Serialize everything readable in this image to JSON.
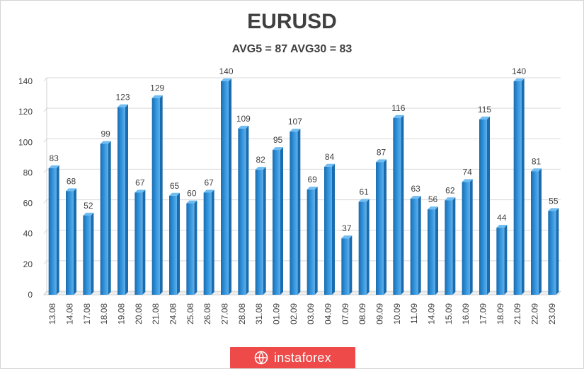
{
  "chart_data": {
    "type": "bar",
    "title": "EURUSD",
    "subtitle": "AVG5 = 87 AVG30 = 83",
    "categories": [
      "13.08",
      "14.08",
      "17.08",
      "18.08",
      "19.08",
      "20.08",
      "21.08",
      "24.08",
      "25.08",
      "26.08",
      "27.08",
      "28.08",
      "31.08",
      "01.09",
      "02.09",
      "03.09",
      "04.09",
      "07.09",
      "08.09",
      "09.09",
      "10.09",
      "11.09",
      "14.09",
      "15.09",
      "16.09",
      "17.09",
      "18.09",
      "21.09",
      "22.09",
      "23.09"
    ],
    "values": [
      83,
      68,
      52,
      99,
      123,
      67,
      129,
      65,
      60,
      67,
      140,
      109,
      82,
      95,
      107,
      69,
      84,
      37,
      61,
      87,
      116,
      63,
      56,
      62,
      74,
      115,
      44,
      140,
      81,
      55
    ],
    "ylim": [
      0,
      140
    ],
    "yticks": [
      0,
      20,
      40,
      60,
      80,
      100,
      120,
      140
    ],
    "grid": true,
    "legend": "none",
    "colors": {
      "bar": "#2e8fd8",
      "bar_dark": "#1a6cae",
      "grid": "#d9d9d9"
    }
  },
  "watermark": {
    "label": "instaforex",
    "icon": "instaforex-logo-icon",
    "color": "#ee4a4a"
  }
}
